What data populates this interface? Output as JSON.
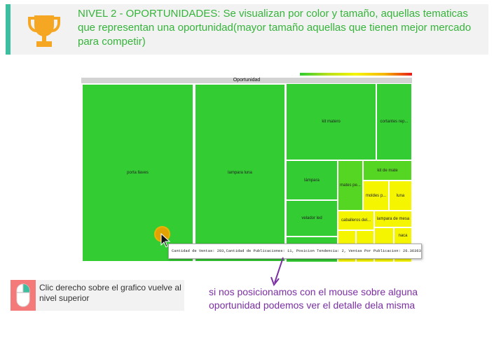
{
  "banner": {
    "text": "NIVEL 2 - OPORTUNIDADES: Se visualizan por color y tamaño, aquellas tematicas que representan una oportunidad(mayor tamaño aquellas que tienen mejor mercado para competir)",
    "accent_color": "#3cbfa0",
    "text_color": "#35b43a",
    "icon": "trophy-icon"
  },
  "treemap": {
    "title": "Oportunidad",
    "cells": [
      {
        "label": "porta llaves",
        "color": "#33cc33"
      },
      {
        "label": "lampara luna",
        "color": "#33cc33"
      },
      {
        "label": "kit matero",
        "color": "#33cc33"
      },
      {
        "label": "cortantes rep...",
        "color": "#33cc33"
      },
      {
        "label": "lámpara",
        "color": "#33cc33"
      },
      {
        "label": "mates pe...",
        "color": "#55d622"
      },
      {
        "label": "kit de mate",
        "color": "#55d622"
      },
      {
        "label": "moldes p...",
        "color": "#f5f500"
      },
      {
        "label": "luna",
        "color": "#f5f500"
      },
      {
        "label": "velador led",
        "color": "#33cc33"
      },
      {
        "label": "caballeros del...",
        "color": "#f5f500"
      },
      {
        "label": "lampara de mesa",
        "color": "#f5f500"
      },
      {
        "label": "naca",
        "color": "#f5f500"
      }
    ]
  },
  "tooltip": {
    "text": "Cantidad de Ventas: 293,Cantidad de Publicaciones: 11, Posicion Tendencia: 2, Ventas Por Publicacion: 26.3636363636"
  },
  "mouse_note": {
    "text": "Clic derecho sobre el grafico vuelve al nivel superior",
    "icon": "mouse-icon"
  },
  "hint": {
    "text": "si nos posicionamos con el mouse sobre alguna oportunidad podemos ver el detalle dela misma",
    "color": "#7b2fa3"
  }
}
